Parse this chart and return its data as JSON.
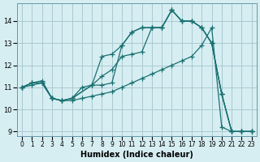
{
  "xlabel": "Humidex (Indice chaleur)",
  "bg_color": "#d6eef2",
  "grid_color": "#aac8d0",
  "line_color": "#1a7070",
  "xlim": [
    -0.5,
    23.5
  ],
  "ylim": [
    8.8,
    14.8
  ],
  "xticks": [
    0,
    1,
    2,
    3,
    4,
    5,
    6,
    7,
    8,
    9,
    10,
    11,
    12,
    13,
    14,
    15,
    16,
    17,
    18,
    19,
    20,
    21,
    22,
    23
  ],
  "yticks": [
    9,
    10,
    11,
    12,
    13,
    14
  ],
  "series": [
    {
      "x": [
        0,
        1,
        2,
        3,
        4,
        5,
        7,
        8,
        9,
        10,
        11,
        12,
        13,
        14,
        15,
        16,
        17,
        18,
        19,
        20,
        21,
        22,
        23
      ],
      "y": [
        11.0,
        11.2,
        11.2,
        10.5,
        10.4,
        10.5,
        11.1,
        11.1,
        11.2,
        12.9,
        13.5,
        13.7,
        13.7,
        13.7,
        14.5,
        14.0,
        14.0,
        13.7,
        13.0,
        10.7,
        9.0,
        9.0,
        9.0
      ]
    },
    {
      "x": [
        0,
        1,
        2,
        3,
        4,
        5,
        7,
        8,
        9,
        10,
        11,
        12,
        13,
        14,
        15,
        16,
        17,
        18,
        19,
        20,
        21,
        22,
        23
      ],
      "y": [
        11.0,
        11.2,
        11.2,
        10.5,
        10.4,
        10.5,
        11.1,
        11.5,
        11.8,
        12.4,
        12.5,
        12.6,
        13.7,
        13.7,
        14.5,
        14.0,
        14.0,
        13.7,
        13.0,
        10.7,
        9.0,
        9.0,
        9.0
      ]
    },
    {
      "x": [
        0,
        1,
        2,
        3,
        4,
        5,
        6,
        7,
        8,
        9,
        10,
        11,
        12,
        13,
        14,
        15,
        16,
        17,
        18,
        19,
        20,
        21,
        22,
        23
      ],
      "y": [
        11.0,
        11.2,
        11.3,
        10.5,
        10.4,
        10.5,
        11.0,
        11.1,
        12.4,
        12.5,
        12.9,
        13.5,
        13.7,
        13.7,
        13.7,
        14.5,
        14.0,
        14.0,
        13.7,
        13.0,
        10.7,
        9.0,
        9.0,
        9.0
      ]
    },
    {
      "x": [
        0,
        1,
        2,
        3,
        4,
        5,
        6,
        7,
        8,
        9,
        10,
        11,
        12,
        13,
        14,
        15,
        16,
        17,
        18,
        19,
        20,
        21,
        22,
        23
      ],
      "y": [
        11.0,
        11.1,
        11.2,
        10.5,
        10.4,
        10.4,
        10.5,
        10.6,
        10.7,
        10.8,
        11.0,
        11.2,
        11.4,
        11.6,
        11.8,
        12.0,
        12.2,
        12.4,
        12.9,
        13.7,
        9.2,
        9.0,
        9.0,
        9.0
      ]
    }
  ]
}
